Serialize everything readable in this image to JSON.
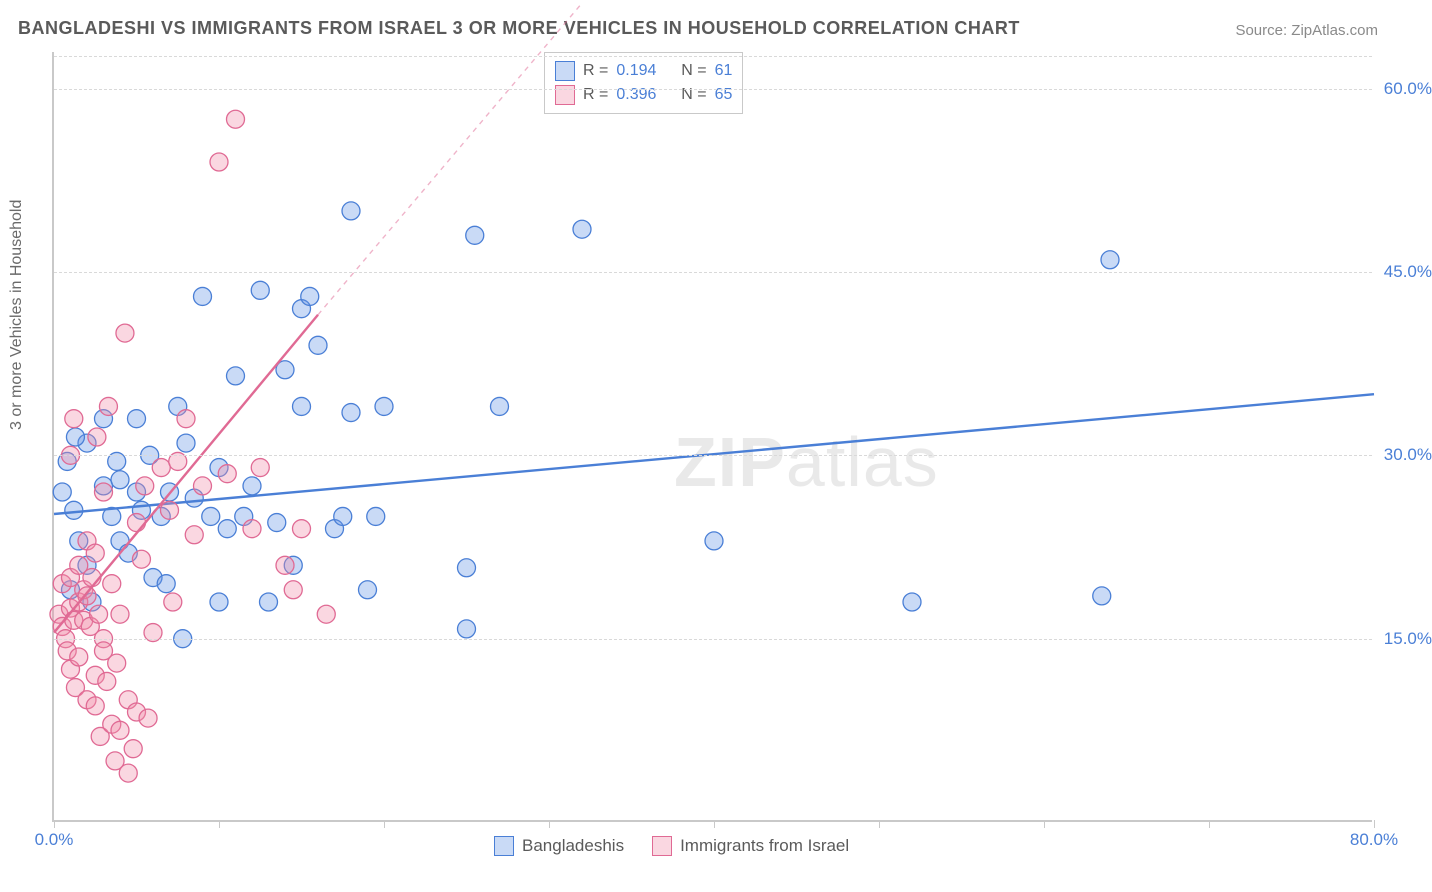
{
  "title": "BANGLADESHI VS IMMIGRANTS FROM ISRAEL 3 OR MORE VEHICLES IN HOUSEHOLD CORRELATION CHART",
  "source": "Source: ZipAtlas.com",
  "watermark": {
    "bold": "ZIP",
    "rest": "atlas"
  },
  "chart": {
    "type": "scatter",
    "ylabel": "3 or more Vehicles in Household",
    "xlim": [
      0,
      80
    ],
    "ylim": [
      0,
      63
    ],
    "xticks": [
      0,
      10,
      20,
      30,
      40,
      50,
      60,
      70,
      80
    ],
    "xtick_labels": {
      "0": "0.0%",
      "80": "80.0%"
    },
    "yticks": [
      15,
      30,
      45,
      60
    ],
    "ytick_labels": {
      "15": "15.0%",
      "30": "30.0%",
      "45": "45.0%",
      "60": "60.0%"
    },
    "background_color": "#ffffff",
    "grid_color": "#d9d9d9",
    "axis_color": "#c9c9c9",
    "tick_label_color": "#4a7fd6",
    "marker_radius": 9,
    "marker_opacity": 0.42,
    "series": [
      {
        "name": "Bangladeshis",
        "color_fill": "rgba(100,150,230,0.35)",
        "color_stroke": "#4a7fd6",
        "r_value": "0.194",
        "n_value": "61",
        "trend": {
          "x1": 0,
          "y1": 25.2,
          "x2": 80,
          "y2": 35.0,
          "dash_extend": false
        },
        "points": [
          [
            0.5,
            27
          ],
          [
            0.8,
            29.5
          ],
          [
            1,
            19
          ],
          [
            1.2,
            25.5
          ],
          [
            1.5,
            23
          ],
          [
            2,
            31
          ],
          [
            2,
            21
          ],
          [
            2.3,
            18
          ],
          [
            3,
            27.5
          ],
          [
            3,
            33
          ],
          [
            3.5,
            25
          ],
          [
            4,
            23
          ],
          [
            4,
            28
          ],
          [
            4.5,
            22
          ],
          [
            5,
            27
          ],
          [
            5,
            33
          ],
          [
            5.3,
            25.5
          ],
          [
            5.8,
            30
          ],
          [
            6,
            20
          ],
          [
            6.5,
            25
          ],
          [
            7,
            27
          ],
          [
            7.5,
            34
          ],
          [
            7.8,
            15
          ],
          [
            8,
            31
          ],
          [
            8.5,
            26.5
          ],
          [
            9,
            43
          ],
          [
            9.5,
            25
          ],
          [
            10,
            29
          ],
          [
            10,
            18
          ],
          [
            10.5,
            24
          ],
          [
            11,
            36.5
          ],
          [
            11.5,
            25
          ],
          [
            12,
            27.5
          ],
          [
            12.5,
            43.5
          ],
          [
            13,
            18
          ],
          [
            13.5,
            24.5
          ],
          [
            14,
            37
          ],
          [
            14.5,
            21
          ],
          [
            15,
            42
          ],
          [
            15,
            34
          ],
          [
            15.5,
            43
          ],
          [
            16,
            39
          ],
          [
            17,
            24
          ],
          [
            17.5,
            25
          ],
          [
            18,
            50
          ],
          [
            18,
            33.5
          ],
          [
            19,
            19
          ],
          [
            19.5,
            25
          ],
          [
            20,
            34
          ],
          [
            25,
            15.8
          ],
          [
            25,
            20.8
          ],
          [
            25.5,
            48
          ],
          [
            27,
            34
          ],
          [
            32,
            48.5
          ],
          [
            40,
            23
          ],
          [
            52,
            18
          ],
          [
            63.5,
            18.5
          ],
          [
            64,
            46
          ],
          [
            1.3,
            31.5
          ],
          [
            3.8,
            29.5
          ],
          [
            6.8,
            19.5
          ]
        ]
      },
      {
        "name": "Immigrants from Israel",
        "color_fill": "rgba(240,140,170,0.35)",
        "color_stroke": "#e06a94",
        "r_value": "0.396",
        "n_value": "65",
        "trend": {
          "x1": 0,
          "y1": 15.5,
          "x2": 16,
          "y2": 41.5,
          "dash_extend": true,
          "dash_x2": 32,
          "dash_y2": 67
        },
        "points": [
          [
            0.3,
            17
          ],
          [
            0.5,
            16
          ],
          [
            0.5,
            19.5
          ],
          [
            0.7,
            15
          ],
          [
            0.8,
            14
          ],
          [
            1,
            12.5
          ],
          [
            1,
            17.5
          ],
          [
            1,
            20
          ],
          [
            1,
            30
          ],
          [
            1.2,
            16.5
          ],
          [
            1.2,
            33
          ],
          [
            1.3,
            11
          ],
          [
            1.5,
            18
          ],
          [
            1.5,
            21
          ],
          [
            1.5,
            13.5
          ],
          [
            1.8,
            16.5
          ],
          [
            1.8,
            19
          ],
          [
            2,
            18.5
          ],
          [
            2,
            10
          ],
          [
            2,
            23
          ],
          [
            2.2,
            16
          ],
          [
            2.3,
            20
          ],
          [
            2.5,
            9.5
          ],
          [
            2.5,
            12
          ],
          [
            2.5,
            22
          ],
          [
            2.7,
            17
          ],
          [
            2.8,
            7
          ],
          [
            3,
            15
          ],
          [
            3,
            27
          ],
          [
            3,
            14
          ],
          [
            3.2,
            11.5
          ],
          [
            3.3,
            34
          ],
          [
            3.5,
            8
          ],
          [
            3.5,
            19.5
          ],
          [
            3.7,
            5
          ],
          [
            3.8,
            13
          ],
          [
            4,
            7.5
          ],
          [
            4,
            17
          ],
          [
            4.3,
            40
          ],
          [
            4.5,
            4
          ],
          [
            4.5,
            10
          ],
          [
            4.8,
            6
          ],
          [
            5,
            9
          ],
          [
            5,
            24.5
          ],
          [
            5.3,
            21.5
          ],
          [
            5.5,
            27.5
          ],
          [
            5.7,
            8.5
          ],
          [
            6,
            15.5
          ],
          [
            6.5,
            29
          ],
          [
            7,
            25.5
          ],
          [
            7.2,
            18
          ],
          [
            7.5,
            29.5
          ],
          [
            8,
            33
          ],
          [
            8.5,
            23.5
          ],
          [
            9,
            27.5
          ],
          [
            10,
            54
          ],
          [
            10.5,
            28.5
          ],
          [
            11,
            57.5
          ],
          [
            12,
            24
          ],
          [
            12.5,
            29
          ],
          [
            14,
            21
          ],
          [
            14.5,
            19
          ],
          [
            15,
            24
          ],
          [
            16.5,
            17
          ],
          [
            2.6,
            31.5
          ]
        ]
      }
    ],
    "legend_labels": {
      "r_prefix": "R  =",
      "n_prefix": "N  ="
    },
    "bottom_legend": [
      "Bangladeshis",
      "Immigrants from Israel"
    ]
  }
}
